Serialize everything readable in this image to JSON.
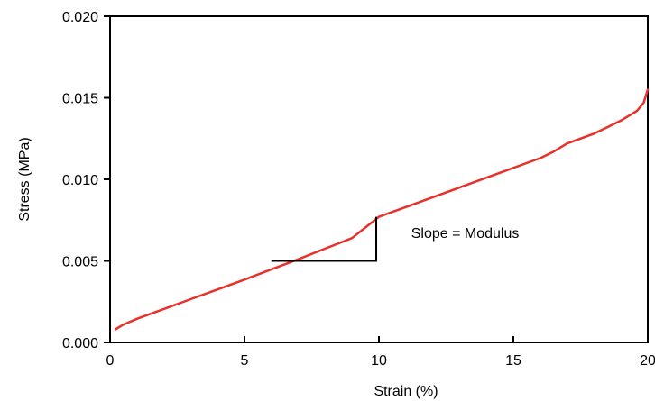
{
  "chart_data": {
    "type": "line",
    "title": "",
    "xlabel": "Strain (%)",
    "ylabel": "Stress (MPa)",
    "xlim": [
      0,
      20
    ],
    "ylim": [
      0,
      0.02
    ],
    "x_ticks": [
      0,
      5,
      10,
      15,
      20
    ],
    "x_tick_labels": [
      "0",
      "5",
      "10",
      "15",
      "20"
    ],
    "y_ticks": [
      0,
      0.005,
      0.01,
      0.015,
      0.02
    ],
    "y_tick_labels": [
      "0.000",
      "0.005",
      "0.010",
      "0.015",
      "0.020"
    ],
    "grid": false,
    "legend": "none",
    "series": [
      {
        "color": "#e8312a",
        "x": [
          0.2,
          0.5,
          1.0,
          2.0,
          3.0,
          4.0,
          5.0,
          6.0,
          7.0,
          8.0,
          9.0,
          10.0,
          11.0,
          12.0,
          13.0,
          14.0,
          15.0,
          16.0,
          16.5,
          17.0,
          18.0,
          18.5,
          19.0,
          19.3,
          19.6,
          19.85,
          20.0
        ],
        "y": [
          0.0008,
          0.0011,
          0.00145,
          0.00205,
          0.00265,
          0.00325,
          0.00385,
          0.00448,
          0.0051,
          0.00575,
          0.0064,
          0.0077,
          0.0083,
          0.0089,
          0.0095,
          0.0101,
          0.0107,
          0.0113,
          0.0117,
          0.0122,
          0.0128,
          0.0132,
          0.0136,
          0.0139,
          0.0142,
          0.0147,
          0.0155
        ]
      }
    ],
    "annotations": [
      {
        "text": "Slope = Modulus",
        "x": 11.2,
        "y": 0.0064,
        "slope_triangle": {
          "x_start": 6.0,
          "x_end": 9.9,
          "y_base": 0.005,
          "y_top": 0.0077
        }
      }
    ],
    "colors": {
      "line": "#e8312a",
      "axes": "#000000",
      "triangle": "#000000"
    }
  }
}
